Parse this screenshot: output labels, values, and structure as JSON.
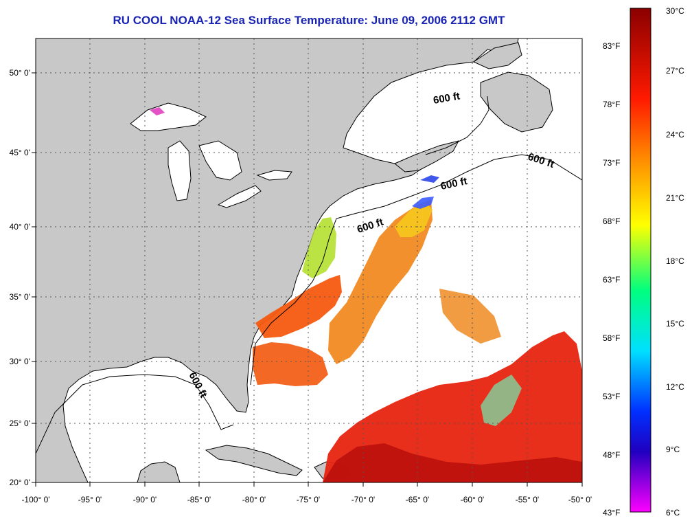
{
  "title": "RU COOL  NOAA-12  Sea Surface Temperature:  June 09, 2006 2112 GMT",
  "map": {
    "lon_range": [
      -100,
      -50
    ],
    "lat_range": [
      20,
      52
    ],
    "lon_ticks": [
      "-100° 0'",
      "-95° 0'",
      "-90° 0'",
      "-85° 0'",
      "-80° 0'",
      "-75° 0'",
      "-70° 0'",
      "-65° 0'",
      "-60° 0'",
      "-55° 0'",
      "-50° 0'"
    ],
    "lat_ticks": [
      "50° 0'",
      "45° 0'",
      "40° 0'",
      "35° 0'",
      "30° 0'",
      "25° 0'",
      "20° 0'"
    ],
    "contour_labels": [
      "600 ft",
      "600 ft",
      "600 ft",
      "600 ft",
      "600 ft"
    ],
    "colors": {
      "land": "#c8c8c8",
      "ocean_no_data": "#ffffff",
      "frame": "#000000",
      "grid": "#555555"
    }
  },
  "colorbar": {
    "celsius_labels": [
      "30°C",
      "27°C",
      "24°C",
      "21°C",
      "18°C",
      "15°C",
      "12°C",
      "9°C",
      "6°C"
    ],
    "fahrenheit_labels": [
      "83°F",
      "78°F",
      "73°F",
      "68°F",
      "63°F",
      "58°F",
      "53°F",
      "48°F",
      "43°F"
    ],
    "range_c": [
      6,
      30
    ],
    "stops": [
      "#8b0000",
      "#ff1a00",
      "#ff8c00",
      "#ffff00",
      "#00ff7f",
      "#00e0ff",
      "#0030ff",
      "#2000c0",
      "#ff00ff"
    ]
  }
}
